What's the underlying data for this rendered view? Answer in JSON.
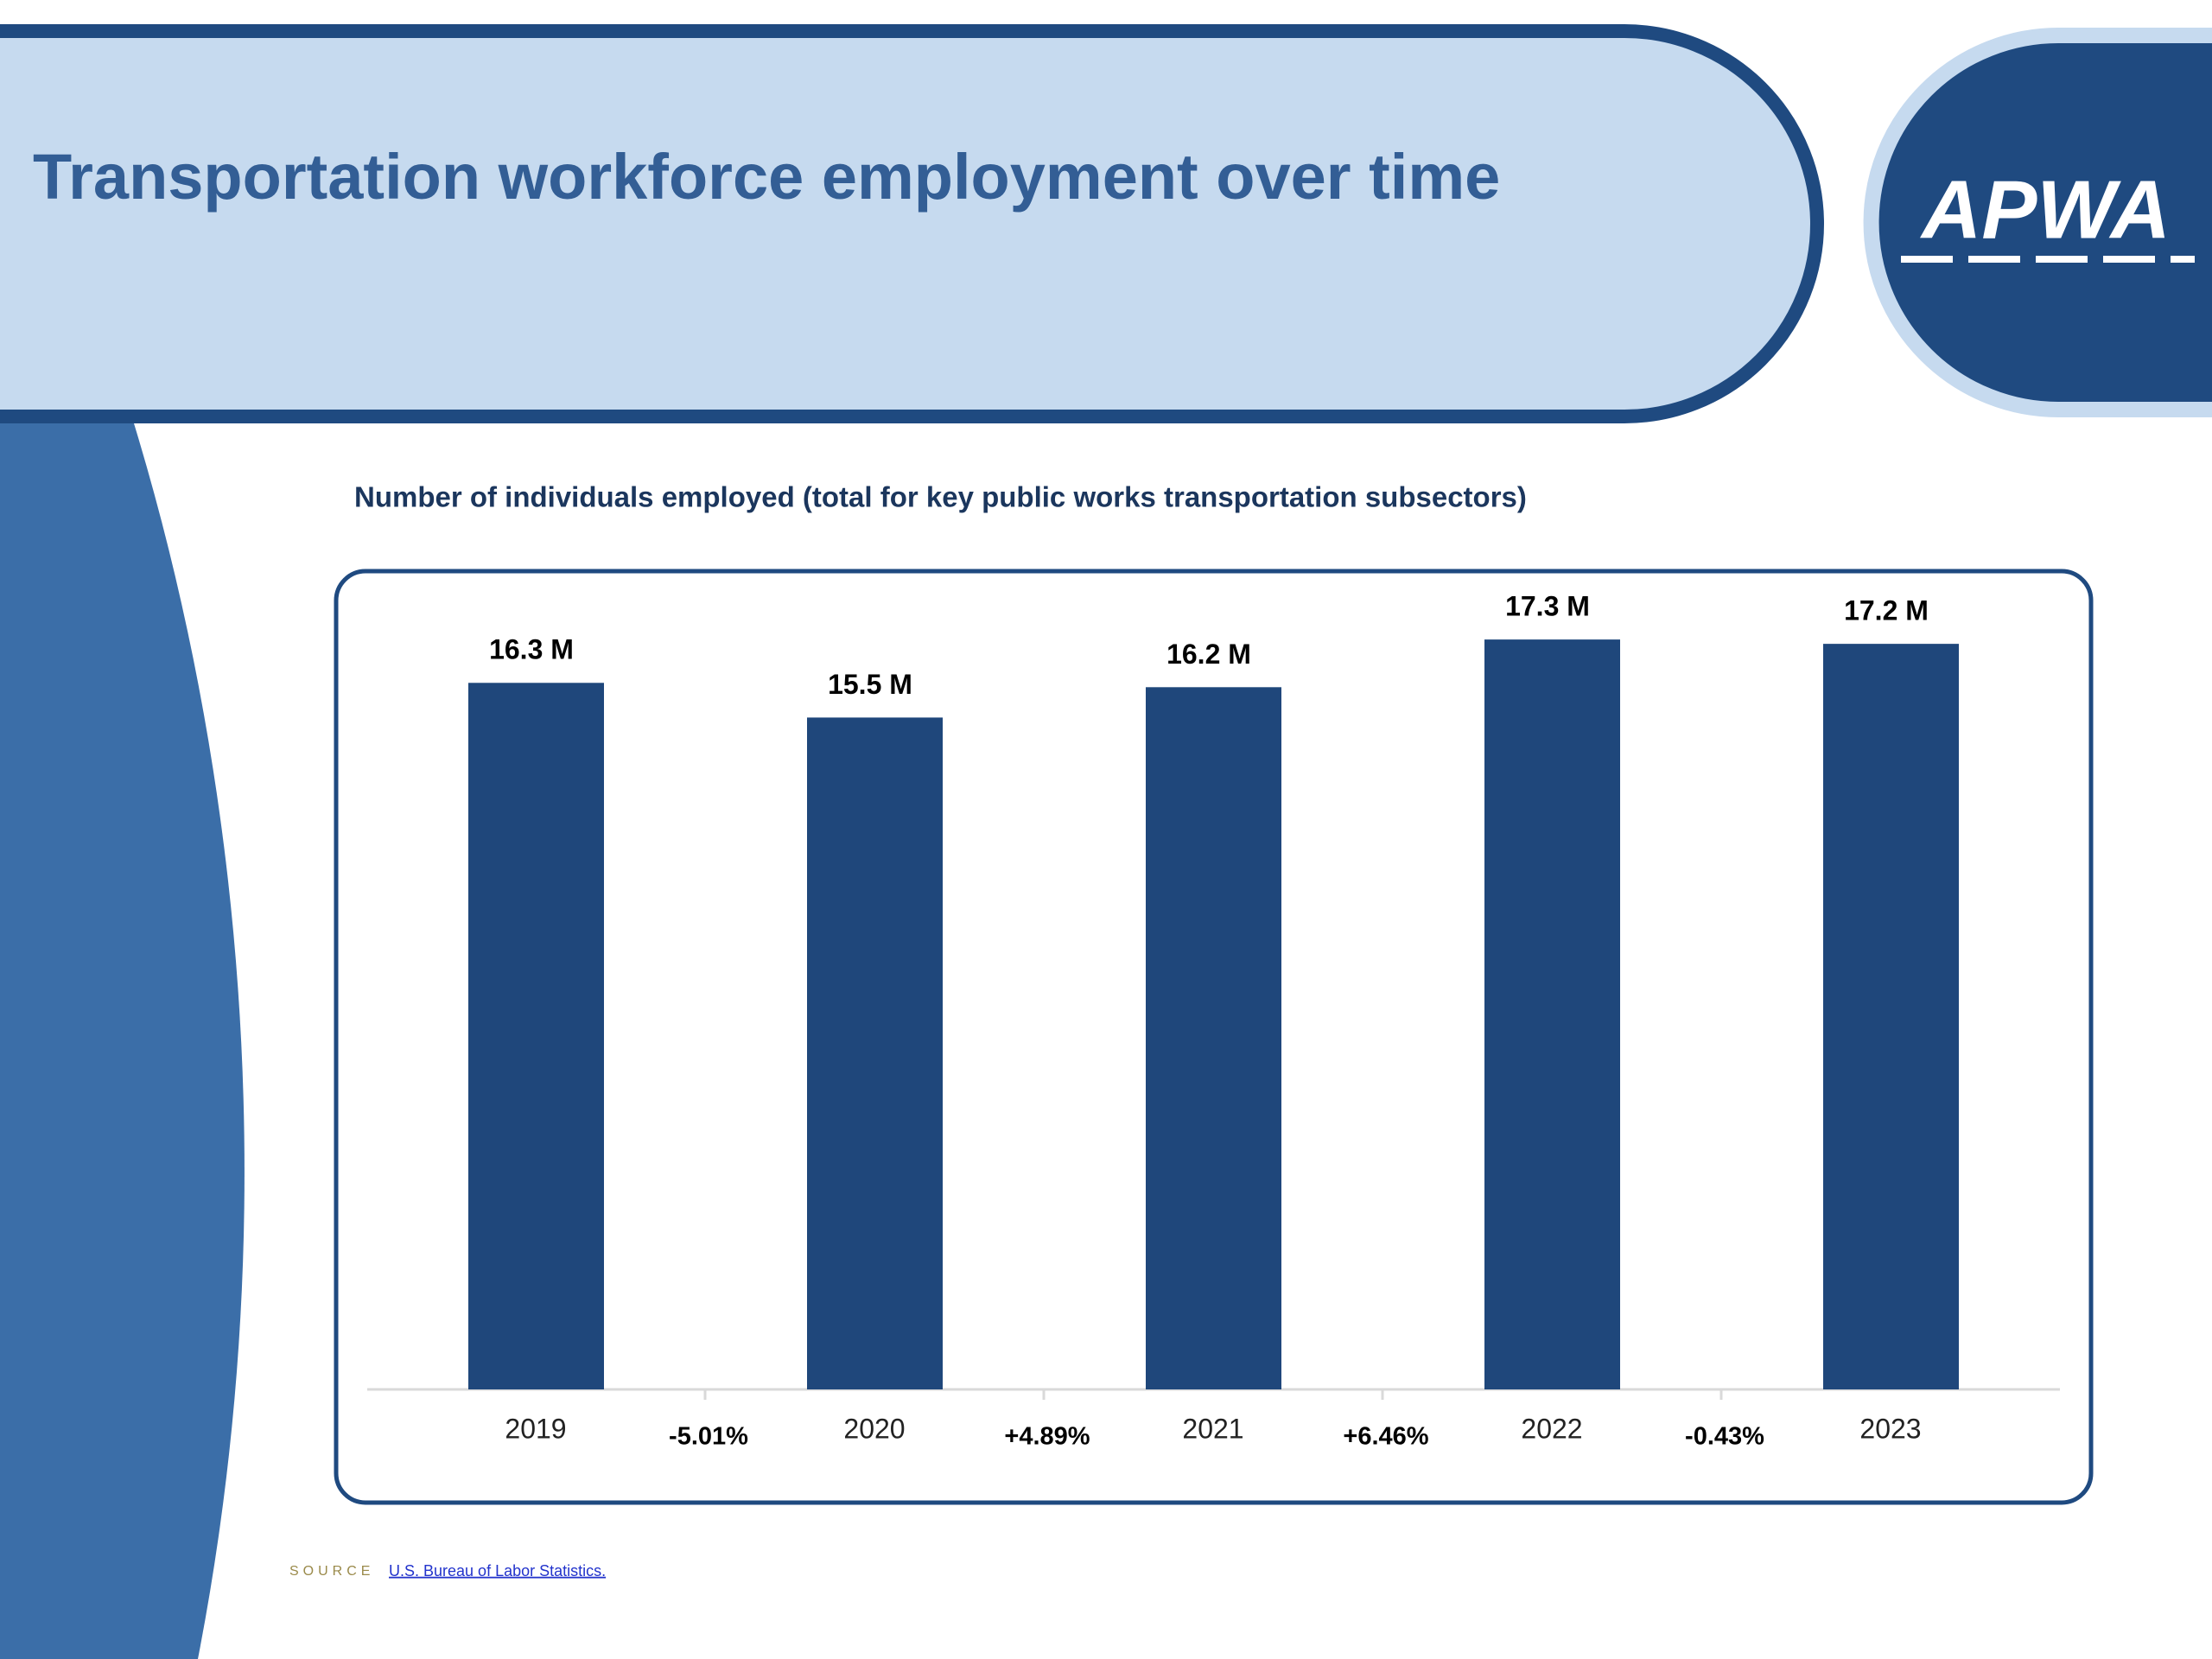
{
  "header": {
    "title": "Transportation workforce employment over time",
    "logo": "APWA"
  },
  "chart_data": {
    "type": "bar",
    "title": "Number of individuals employed (total for key public works transportation subsectors)",
    "categories": [
      "2019",
      "2020",
      "2021",
      "2022",
      "2023"
    ],
    "values": [
      16.3,
      15.5,
      16.2,
      17.3,
      17.2
    ],
    "value_labels": [
      "16.3 M",
      "15.5 M",
      "16.2 M",
      "17.3 M",
      "17.2 M"
    ],
    "color": "#1f477b",
    "ylim": [
      0,
      18
    ],
    "annotations": [
      "-5.01%",
      "+4.89%",
      "+6.46%",
      "-0.43%"
    ]
  },
  "source": {
    "label": "SOURCE",
    "link": "U.S. Bureau of Labor Statistics."
  }
}
